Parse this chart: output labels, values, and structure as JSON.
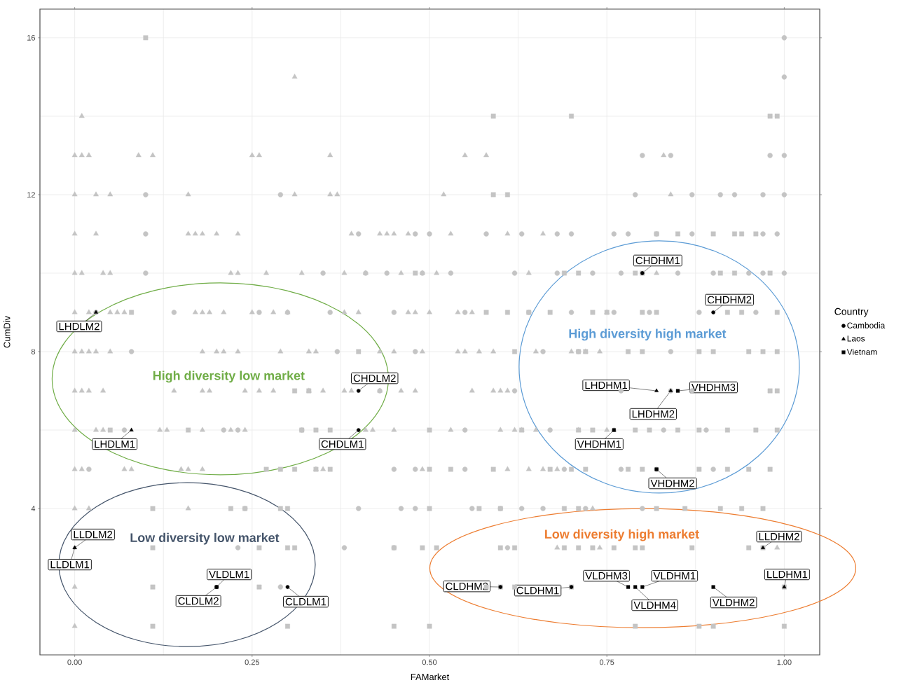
{
  "chart_data": {
    "type": "scatter",
    "xlabel": "FAMarket",
    "ylabel": "CumDiv",
    "legend_title": "Country",
    "legend": "right",
    "grid": true,
    "xlim": [
      -0.049,
      1.05
    ],
    "ylim": [
      0.27,
      16.73
    ],
    "xticks": [
      {
        "value": 0,
        "label": "0.00"
      },
      {
        "value": 0.25,
        "label": "0.25"
      },
      {
        "value": 0.5,
        "label": "0.50"
      },
      {
        "value": 0.75,
        "label": "0.75"
      },
      {
        "value": 1,
        "label": "1.00"
      }
    ],
    "yticks": [
      4,
      8,
      12,
      16
    ],
    "annotations": [
      "High diversity low market",
      "High diversity high market",
      "Low diversity low market",
      "Low diversity high market"
    ],
    "series": [
      {
        "color": "#c4c4c4",
        "marker": "triangle",
        "x": [
          0.31,
          0.01,
          0,
          0.01,
          0.02,
          0.09,
          0.11,
          0.25,
          0.26,
          0.36,
          0.55,
          0.58,
          0.83,
          0,
          0.03,
          0.05,
          0.16,
          0.31,
          0.36,
          0.37,
          0.52,
          0.84,
          0,
          0.03,
          0.16,
          0.17,
          0.18,
          0.2,
          0.23,
          0.39,
          0.43,
          0.44,
          0.45,
          0.47,
          0.53,
          0.61,
          0.66,
          0,
          0.01,
          0.04,
          0.05,
          0.22,
          0.23,
          0.27,
          0.32,
          0.38,
          0.41,
          0.46,
          0.49,
          0.51,
          0.64,
          0.82,
          0,
          0.02,
          0.05,
          0.06,
          0.07,
          0.17,
          0.18,
          0.19,
          0.21,
          0.25,
          0.28,
          0.3,
          0.38,
          0.4,
          0.47,
          0.48,
          0.5,
          0.54,
          0.56,
          0.75,
          0,
          0.01,
          0.02,
          0.03,
          0.05,
          0.18,
          0.2,
          0.21,
          0.23,
          0.29,
          0.33,
          0.34,
          0.43,
          0.45,
          0.49,
          0.54,
          0.55,
          0.57,
          0.59,
          0.65,
          0.7,
          0.72,
          0.74,
          0,
          0.01,
          0.02,
          0.04,
          0.14,
          0.18,
          0.19,
          0.24,
          0.26,
          0.28,
          0.33,
          0.35,
          0.38,
          0.39,
          0.43,
          0.46,
          0.48,
          0.56,
          0.59,
          0.6,
          0.61,
          0,
          0.03,
          0.04,
          0.12,
          0.13,
          0.18,
          0.22,
          0.24,
          0.41,
          0.42,
          0.45,
          0.53,
          0.6,
          0.62,
          0.63,
          0.65,
          0.71,
          0.75,
          0.76,
          0,
          0.01,
          0.07,
          0.08,
          0.15,
          0.16,
          0.18,
          0.34,
          0.35,
          0.49,
          0.61,
          0.64,
          0.66,
          0.68,
          0,
          0.02,
          0.16,
          0.73,
          0.68,
          0.74,
          0.99,
          0,
          0
        ],
        "values": [
          15,
          14,
          13,
          13,
          13,
          13,
          13,
          13,
          13,
          13,
          13,
          13,
          13,
          12,
          12,
          12,
          12,
          12,
          12,
          12,
          12,
          12,
          11,
          11,
          11,
          11,
          11,
          11,
          11,
          11,
          11,
          11,
          11,
          11,
          11,
          11,
          11,
          10,
          10,
          10,
          10,
          10,
          10,
          10,
          10,
          10,
          10,
          10,
          10,
          10,
          10,
          10,
          9,
          9,
          9,
          9,
          9,
          9,
          9,
          9,
          9,
          9,
          9,
          9,
          9,
          9,
          9,
          9,
          9,
          9,
          9,
          9,
          8,
          8,
          8,
          8,
          8,
          8,
          8,
          8,
          8,
          8,
          8,
          8,
          8,
          8,
          8,
          8,
          8,
          8,
          8,
          8,
          8,
          8,
          8,
          7,
          7,
          7,
          7,
          7,
          7,
          7,
          7,
          7,
          7,
          7,
          7,
          7,
          7,
          7,
          7,
          7,
          7,
          7,
          7,
          7,
          6,
          6,
          6,
          6,
          6,
          6,
          6,
          6,
          6,
          6,
          6,
          6,
          6,
          6,
          6,
          6,
          6,
          6,
          6,
          5,
          5,
          5,
          5,
          5,
          5,
          5,
          5,
          5,
          5,
          5,
          5,
          5,
          5,
          4,
          4,
          4,
          4,
          3,
          3,
          3,
          2,
          1
        ]
      },
      {
        "color": "#c4c4c4",
        "marker": "circle",
        "x": [
          1,
          1,
          0.8,
          0.84,
          0.98,
          1,
          0.1,
          0.29,
          0.79,
          0.87,
          0.91,
          0.93,
          0.97,
          1,
          0.1,
          0.4,
          0.48,
          0.5,
          0.58,
          0.63,
          0.68,
          0.7,
          0.76,
          0.78,
          0.82,
          0.87,
          0.97,
          0.99,
          0.1,
          0.35,
          0.41,
          0.44,
          0.49,
          0.53,
          0.62,
          0.68,
          0.73,
          0.77,
          0.85,
          0.9,
          0.95,
          0.97,
          1,
          0.03,
          0.14,
          0.26,
          0.3,
          0.36,
          0.45,
          0.55,
          0.64,
          0.7,
          0.76,
          0.81,
          0.88,
          0.96,
          0.08,
          0.37,
          0.48,
          0.66,
          0.71,
          0.84,
          0.43,
          0.62,
          0.77,
          0.84,
          0.87,
          0.07,
          0.21,
          0.23,
          0.32,
          0.55,
          0.67,
          0.83,
          0.89,
          0.02,
          0.45,
          0.48,
          0.55,
          0.69,
          0.77,
          0.82,
          0.9,
          0.24,
          0.4,
          0.46,
          0.48,
          0.56,
          0.6,
          0.63,
          0.66,
          0.72,
          0.8,
          0.23,
          0.38,
          0.45,
          0.61,
          0.29
        ],
        "values": [
          16,
          15,
          13,
          13,
          13,
          13,
          12,
          12,
          12,
          12,
          12,
          12,
          12,
          12,
          11,
          11,
          11,
          11,
          11,
          11,
          11,
          11,
          11,
          11,
          11,
          11,
          11,
          11,
          10,
          10,
          10,
          10,
          10,
          10,
          10,
          10,
          10,
          10,
          10,
          10,
          10,
          10,
          10,
          9,
          9,
          9,
          9,
          9,
          9,
          9,
          9,
          9,
          9,
          9,
          9,
          9,
          8,
          8,
          8,
          8,
          8,
          8,
          7,
          7,
          7,
          7,
          7,
          6,
          6,
          6,
          6,
          6,
          6,
          6,
          6,
          5,
          5,
          5,
          5,
          5,
          5,
          5,
          5,
          4,
          4,
          4,
          4,
          4,
          4,
          4,
          4,
          4,
          4,
          3,
          3,
          3,
          3,
          2
        ]
      },
      {
        "color": "#c4c4c4",
        "marker": "square",
        "x": [
          0.1,
          0.59,
          0.7,
          0.98,
          0.99,
          0.59,
          0.61,
          0.82,
          0.85,
          0.9,
          0.93,
          0.94,
          0.96,
          0.48,
          0.69,
          0.71,
          0.79,
          0.8,
          0.91,
          0.93,
          0.98,
          0.08,
          0.58,
          0.61,
          0.64,
          0.67,
          0.73,
          0.75,
          0.8,
          0.82,
          0.92,
          0.94,
          0.99,
          0.4,
          0.62,
          0.71,
          0.72,
          0.78,
          0.8,
          0.88,
          0.9,
          0.95,
          0.97,
          0.99,
          0.31,
          0.33,
          0.98,
          0.99,
          0.05,
          0.16,
          0.32,
          0.34,
          0.36,
          0.5,
          0.63,
          0.71,
          0.73,
          0.79,
          0.81,
          0.85,
          0.88,
          0.92,
          0.96,
          0.99,
          0.27,
          0.29,
          0.31,
          0.34,
          0.36,
          0.5,
          0.53,
          0.59,
          0.67,
          0.7,
          0.72,
          0.78,
          0.8,
          0.88,
          0.92,
          0.95,
          0.98,
          0.11,
          0.22,
          0.24,
          0.29,
          0.3,
          0.5,
          0.57,
          0.6,
          0.69,
          0.71,
          0.82,
          0.86,
          0.91,
          0.94,
          0.97,
          0.11,
          0.26,
          0.3,
          0.31,
          0.45,
          0.49,
          0.51,
          0.6,
          0.62,
          0.69,
          0.71,
          0.73,
          0.76,
          0.79,
          0.8,
          0.87,
          0.95,
          0.97,
          0.11,
          0.26,
          0.58,
          0.6,
          0.62,
          0.7,
          1,
          0.11,
          0.3,
          0.45,
          0.5,
          0.79,
          0.88,
          0.9,
          1
        ],
        "values": [
          16,
          14,
          14,
          14,
          14,
          12,
          12,
          11,
          11,
          11,
          11,
          11,
          11,
          10,
          10,
          10,
          10,
          10,
          10,
          10,
          10,
          9,
          9,
          9,
          9,
          9,
          9,
          9,
          9,
          9,
          9,
          9,
          9,
          8,
          8,
          8,
          8,
          8,
          8,
          8,
          8,
          8,
          8,
          8,
          7,
          7,
          7,
          7,
          6,
          6,
          6,
          6,
          6,
          6,
          6,
          6,
          6,
          6,
          6,
          6,
          6,
          6,
          6,
          6,
          5,
          5,
          5,
          5,
          5,
          5,
          5,
          5,
          5,
          5,
          5,
          5,
          5,
          5,
          5,
          5,
          5,
          4,
          4,
          4,
          4,
          4,
          4,
          4,
          4,
          4,
          4,
          4,
          4,
          4,
          4,
          4,
          3,
          3,
          3,
          3,
          3,
          3,
          3,
          3,
          3,
          3,
          3,
          3,
          3,
          3,
          3,
          3,
          3,
          3,
          2,
          2,
          2,
          2,
          2,
          2,
          2,
          1,
          1,
          1,
          1,
          1,
          1,
          1,
          1
        ]
      },
      {
        "name": "Cambodia",
        "color": "#000000",
        "marker": "circle",
        "x": [
          0.8,
          0.9,
          0.4,
          0.4,
          0.3,
          0.2,
          0.6,
          0.7
        ],
        "values": [
          10,
          9,
          7,
          6,
          2,
          2,
          2,
          2
        ],
        "value_labels": [
          "CHDHM1",
          "CHDHM2",
          "CHDLM2",
          "CHDLM1",
          "CLDLM1",
          "CLDLM2",
          "CLDHM2",
          "CLDHM1"
        ]
      },
      {
        "name": "Laos",
        "color": "#000000",
        "marker": "triangle",
        "x": [
          0.03,
          0.08,
          0,
          0,
          0.82,
          0.84,
          0.97,
          1
        ],
        "values": [
          9,
          6,
          3,
          3,
          7,
          7,
          3,
          2
        ],
        "value_labels": [
          "LHDLM2",
          "LHDLM1",
          "LLDLM2",
          "LLDLM1",
          "LHDHM1",
          "LHDHM2",
          "LLDHM2",
          "LLDHM1"
        ]
      },
      {
        "name": "Vietnam",
        "color": "#000000",
        "marker": "square",
        "x": [
          0.85,
          0.76,
          0.82,
          0.2,
          0.78,
          0.8,
          0.79,
          0.9
        ],
        "values": [
          7,
          6,
          5,
          2,
          2,
          2,
          2,
          2
        ],
        "value_labels": [
          "VHDHM3",
          "VHDHM1",
          "VHDHM2",
          "VLDLM1",
          "VLDHM3",
          "VLDHM1",
          "VLDHM4",
          "VLDHM2"
        ]
      }
    ]
  }
}
